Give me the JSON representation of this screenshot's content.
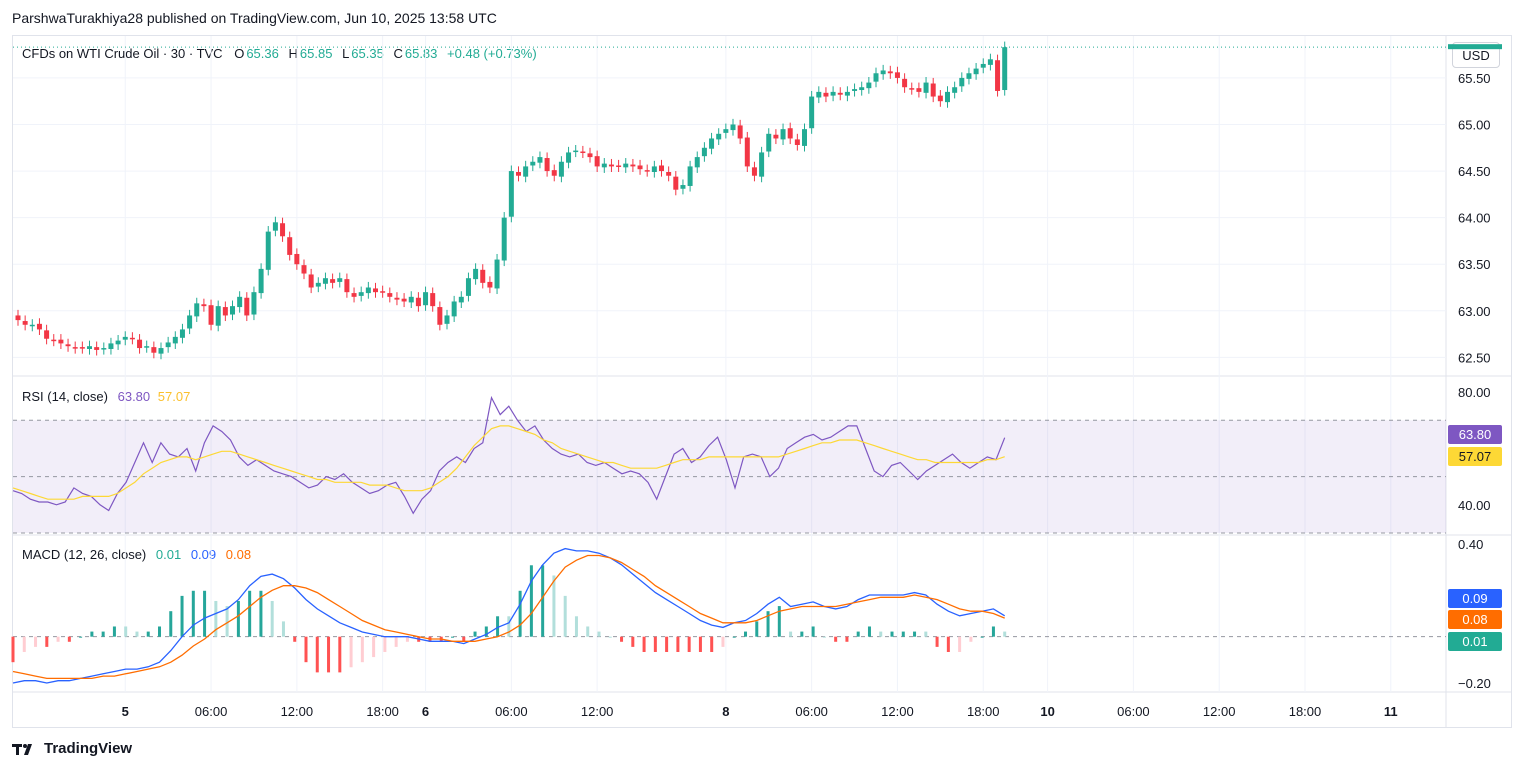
{
  "header": {
    "text": "ParshwaTurakhiya28 published on TradingView.com, Jun 10, 2025 13:58 UTC"
  },
  "legend": {
    "symbol": "CFDs on WTI Crude Oil · 30 · TVC",
    "o_label": "O",
    "o_value": "65.36",
    "h_label": "H",
    "h_value": "65.85",
    "l_label": "L",
    "l_value": "65.35",
    "c_label": "C",
    "c_value": "65.83",
    "change": "+0.48 (+0.73%)"
  },
  "currency_button": "USD",
  "rsi": {
    "label": "RSI (14, close)",
    "value": "63.80",
    "ma_value": "57.07"
  },
  "macd": {
    "label": "MACD (12, 26, close)",
    "hist_value": "0.01",
    "macd_value": "0.09",
    "signal_value": "0.08"
  },
  "footer": {
    "brand": "TradingView"
  },
  "colors": {
    "up": "#22ab94",
    "down": "#f23645",
    "rsi": "#7e57c2",
    "rsi_ma": "#fdd835",
    "macd": "#2962ff",
    "signal": "#ff6d00",
    "rsi_band": "#7e57c2"
  },
  "chart_data": [
    {
      "type": "candlestick",
      "title": "CFDs on WTI Crude Oil · 30 · TVC",
      "x_ticks": [
        "5",
        "06:00",
        "12:00",
        "18:00",
        "6",
        "06:00",
        "12:00",
        "8",
        "06:00",
        "12:00",
        "18:00",
        "10",
        "06:00",
        "12:00",
        "18:00",
        "11"
      ],
      "x_tick_index": [
        15,
        27,
        39,
        51,
        57,
        69,
        81,
        99,
        111,
        123,
        135,
        144,
        156,
        168,
        180,
        192
      ],
      "y_ticks": [
        "65.50",
        "65.00",
        "64.50",
        "64.00",
        "63.50",
        "63.00",
        "62.50"
      ],
      "ylim": [
        62.3,
        65.95
      ],
      "last_close_label": "65.83",
      "close_approx": [
        62.9,
        62.85,
        62.85,
        62.8,
        62.7,
        62.68,
        62.65,
        62.62,
        62.6,
        62.6,
        62.62,
        62.58,
        62.6,
        62.65,
        62.68,
        62.72,
        62.7,
        62.6,
        62.62,
        62.55,
        62.6,
        62.66,
        62.72,
        62.8,
        62.95,
        63.08,
        63.05,
        62.85,
        63.05,
        62.95,
        63.05,
        63.15,
        62.95,
        63.2,
        63.45,
        63.85,
        63.95,
        63.8,
        63.6,
        63.5,
        63.4,
        63.25,
        63.3,
        63.35,
        63.3,
        63.35,
        63.2,
        63.15,
        63.2,
        63.25,
        63.2,
        63.2,
        63.15,
        63.12,
        63.1,
        63.15,
        63.05,
        63.2,
        63.05,
        62.85,
        62.95,
        63.1,
        63.15,
        63.35,
        63.45,
        63.3,
        63.25,
        63.55,
        64.0,
        64.5,
        64.45,
        64.55,
        64.6,
        64.65,
        64.5,
        64.45,
        64.6,
        64.7,
        64.72,
        64.7,
        64.65,
        64.55,
        64.58,
        64.55,
        64.55,
        64.58,
        64.55,
        64.52,
        64.5,
        64.55,
        64.5,
        64.45,
        64.3,
        64.35,
        64.55,
        64.65,
        64.75,
        64.85,
        64.9,
        64.95,
        65.0,
        64.85,
        64.55,
        64.45,
        64.7,
        64.9,
        64.85,
        64.95,
        64.85,
        64.78,
        64.95,
        65.3,
        65.35,
        65.3,
        65.35,
        65.32,
        65.35,
        65.38,
        65.4,
        65.45,
        65.55,
        65.58,
        65.55,
        65.5,
        65.4,
        65.38,
        65.35,
        65.45,
        65.3,
        65.25,
        65.35,
        65.4,
        65.5,
        65.55,
        65.6,
        65.65,
        65.7,
        65.36,
        65.83
      ]
    },
    {
      "type": "line",
      "title": "RSI (14, close)",
      "y_ticks": [
        "80.00",
        "40.00"
      ],
      "ylim": [
        30,
        85
      ],
      "band": [
        30,
        70
      ],
      "midline": 50,
      "series": [
        {
          "name": "RSI",
          "values": [
            45,
            44,
            42,
            41,
            41,
            40,
            41,
            46,
            44,
            43,
            40,
            38,
            44,
            48,
            55,
            62,
            55,
            62,
            58,
            57,
            60,
            52,
            62,
            68,
            66,
            63,
            57,
            54,
            56,
            54,
            52,
            51,
            50,
            48,
            46,
            47,
            50,
            49,
            51,
            48,
            46,
            44,
            45,
            47,
            48,
            43,
            37,
            42,
            45,
            52,
            55,
            57,
            55,
            60,
            62,
            78,
            72,
            75,
            70,
            66,
            68,
            63,
            60,
            58,
            57,
            58,
            55,
            54,
            55,
            53,
            51,
            52,
            51,
            48,
            42,
            50,
            58,
            60,
            55,
            57,
            61,
            64,
            56,
            46,
            57,
            58,
            57,
            50,
            53,
            60,
            62,
            64,
            65,
            63,
            64,
            66,
            68,
            68,
            60,
            52,
            50,
            54,
            55,
            52,
            49,
            52,
            54,
            56,
            58,
            55,
            53,
            55,
            57,
            56,
            63.8
          ]
        },
        {
          "name": "RSI MA",
          "values": [
            46,
            45,
            44,
            43,
            42,
            42,
            42,
            42,
            43,
            43,
            43,
            43,
            44,
            46,
            48,
            51,
            53,
            55,
            56,
            57,
            57,
            56,
            57,
            58,
            59,
            59,
            58,
            57,
            56,
            55,
            54,
            53,
            52,
            51,
            50,
            49,
            49,
            48,
            48,
            48,
            48,
            47,
            47,
            47,
            46,
            45,
            45,
            45,
            46,
            48,
            50,
            53,
            57,
            61,
            64,
            67,
            68,
            68,
            67,
            66,
            65,
            63,
            62,
            60,
            59,
            58,
            57,
            56,
            55,
            55,
            54,
            53,
            53,
            53,
            53,
            54,
            55,
            56,
            56,
            56,
            57,
            57,
            57,
            57,
            57,
            57,
            57,
            57,
            57,
            58,
            59,
            60,
            61,
            62,
            62,
            63,
            63,
            63,
            62,
            61,
            60,
            59,
            58,
            57,
            56,
            56,
            55,
            55,
            55,
            55,
            55,
            55,
            56,
            56,
            57.07
          ]
        }
      ]
    },
    {
      "type": "line",
      "title": "MACD (12, 26, close)",
      "y_ticks": [
        "0.40",
        "−0.20"
      ],
      "ylim": [
        -0.23,
        0.43
      ],
      "series": [
        {
          "name": "MACD",
          "values": [
            -0.2,
            -0.19,
            -0.19,
            -0.2,
            -0.19,
            -0.19,
            -0.18,
            -0.17,
            -0.16,
            -0.15,
            -0.14,
            -0.14,
            -0.13,
            -0.11,
            -0.06,
            0.0,
            0.05,
            0.08,
            0.1,
            0.12,
            0.16,
            0.22,
            0.26,
            0.27,
            0.25,
            0.21,
            0.16,
            0.12,
            0.09,
            0.06,
            0.04,
            0.02,
            0.01,
            0.0,
            0.0,
            0.0,
            -0.01,
            -0.02,
            -0.02,
            -0.02,
            -0.03,
            -0.01,
            0.01,
            0.04,
            0.06,
            0.14,
            0.24,
            0.31,
            0.36,
            0.38,
            0.37,
            0.37,
            0.36,
            0.34,
            0.31,
            0.27,
            0.23,
            0.19,
            0.16,
            0.13,
            0.1,
            0.07,
            0.05,
            0.04,
            0.06,
            0.07,
            0.1,
            0.14,
            0.17,
            0.13,
            0.14,
            0.15,
            0.13,
            0.12,
            0.13,
            0.16,
            0.18,
            0.18,
            0.18,
            0.18,
            0.19,
            0.18,
            0.14,
            0.11,
            0.09,
            0.1,
            0.11,
            0.12,
            0.09
          ]
        },
        {
          "name": "Signal",
          "values": [
            -0.15,
            -0.16,
            -0.17,
            -0.18,
            -0.18,
            -0.18,
            -0.18,
            -0.18,
            -0.17,
            -0.17,
            -0.16,
            -0.15,
            -0.14,
            -0.13,
            -0.11,
            -0.08,
            -0.04,
            -0.01,
            0.03,
            0.06,
            0.09,
            0.13,
            0.17,
            0.2,
            0.22,
            0.22,
            0.21,
            0.19,
            0.16,
            0.13,
            0.1,
            0.07,
            0.05,
            0.03,
            0.02,
            0.01,
            0.0,
            -0.01,
            -0.01,
            -0.02,
            -0.02,
            -0.02,
            -0.01,
            0.0,
            0.02,
            0.05,
            0.1,
            0.17,
            0.24,
            0.3,
            0.33,
            0.35,
            0.35,
            0.34,
            0.32,
            0.29,
            0.26,
            0.22,
            0.19,
            0.16,
            0.13,
            0.1,
            0.08,
            0.06,
            0.06,
            0.06,
            0.07,
            0.09,
            0.11,
            0.12,
            0.13,
            0.13,
            0.13,
            0.13,
            0.14,
            0.15,
            0.16,
            0.17,
            0.17,
            0.17,
            0.18,
            0.17,
            0.16,
            0.14,
            0.12,
            0.11,
            0.11,
            0.1,
            0.08
          ]
        }
      ],
      "histogram_last": 0.01
    }
  ]
}
